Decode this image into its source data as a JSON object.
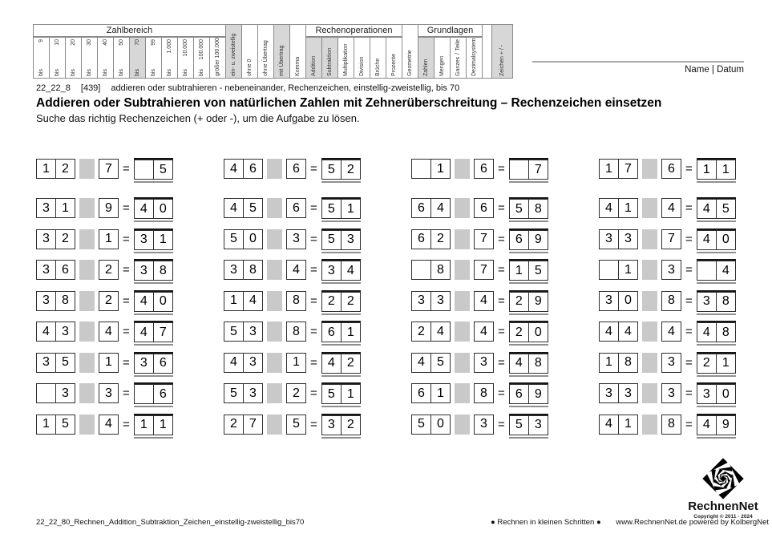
{
  "header": {
    "segments": [
      {
        "type": "group",
        "label": "Zahlbereich",
        "cols": [
          {
            "label": "bis 9"
          },
          {
            "label": "bis 10"
          },
          {
            "label": "bis 20"
          },
          {
            "label": "bis 30"
          },
          {
            "label": "bis 40"
          },
          {
            "label": "bis 50"
          },
          {
            "label": "bis 70",
            "shaded": true
          },
          {
            "label": "bis 99"
          },
          {
            "label": "bis 1.000"
          },
          {
            "label": "bis 10.000"
          },
          {
            "label": "bis 100.000"
          },
          {
            "label": "größer 100.000"
          }
        ]
      },
      {
        "type": "col",
        "label": "ein- u. zweistellig",
        "shaded": true
      },
      {
        "type": "col",
        "label": "ohne 0"
      },
      {
        "type": "col",
        "label": "ohne Übertrag"
      },
      {
        "type": "col",
        "label": "mit Übertrag",
        "shaded": true
      },
      {
        "type": "col",
        "label": "Komma"
      },
      {
        "type": "group",
        "label": "Rechenoperationen",
        "cols": [
          {
            "label": "Addition",
            "shaded": true
          },
          {
            "label": "Subtraktion",
            "shaded": true
          },
          {
            "label": "Multiplikation"
          },
          {
            "label": "Division"
          },
          {
            "label": "Brüche"
          },
          {
            "label": "Prozente"
          }
        ]
      },
      {
        "type": "col",
        "label": "Geometrie"
      },
      {
        "type": "group",
        "label": "Grundlagen",
        "cols": [
          {
            "label": "Zahlen",
            "shaded": true
          },
          {
            "label": "Mengen"
          },
          {
            "label": "Ganzes / Teile"
          },
          {
            "label": "Dezimalsystem"
          }
        ]
      },
      {
        "type": "col",
        "label": "",
        "spacer": true
      },
      {
        "type": "col",
        "label": "Zeichen + / -",
        "shaded": true,
        "wide": true
      }
    ],
    "name_datum_label": "Name | Datum"
  },
  "meta": {
    "code": "22_22_8",
    "ref": "[439]",
    "description": "addieren oder subtrahieren - nebeneinander, Rechenzeichen, einstellig-zweistellig, bis 70"
  },
  "title": "Addieren oder Subtrahieren von natürlichen Zahlen mit Zehnerüberschreitung – Rechenzeichen einsetzen",
  "subtitle": "Suche das richtig Rechenzeichen (+ oder -), um die Aufgabe zu lösen.",
  "problems": {
    "equals": "=",
    "rows": [
      [
        {
          "a": [
            "1",
            "2"
          ],
          "b": "7",
          "r": [
            "",
            "5"
          ]
        },
        {
          "a": [
            "4",
            "6"
          ],
          "b": "6",
          "r": [
            "5",
            "2"
          ]
        },
        {
          "a": [
            "",
            "1"
          ],
          "b": "6",
          "r": [
            "",
            "7"
          ]
        },
        {
          "a": [
            "1",
            "7"
          ],
          "b": "6",
          "r": [
            "1",
            "1"
          ]
        }
      ],
      [
        {
          "a": [
            "3",
            "1"
          ],
          "b": "9",
          "r": [
            "4",
            "0"
          ]
        },
        {
          "a": [
            "4",
            "5"
          ],
          "b": "6",
          "r": [
            "5",
            "1"
          ]
        },
        {
          "a": [
            "6",
            "4"
          ],
          "b": "6",
          "r": [
            "5",
            "8"
          ]
        },
        {
          "a": [
            "4",
            "1"
          ],
          "b": "4",
          "r": [
            "4",
            "5"
          ]
        }
      ],
      [
        {
          "a": [
            "3",
            "2"
          ],
          "b": "1",
          "r": [
            "3",
            "1"
          ]
        },
        {
          "a": [
            "5",
            "0"
          ],
          "b": "3",
          "r": [
            "5",
            "3"
          ]
        },
        {
          "a": [
            "6",
            "2"
          ],
          "b": "7",
          "r": [
            "6",
            "9"
          ]
        },
        {
          "a": [
            "3",
            "3"
          ],
          "b": "7",
          "r": [
            "4",
            "0"
          ]
        }
      ],
      [
        {
          "a": [
            "3",
            "6"
          ],
          "b": "2",
          "r": [
            "3",
            "8"
          ]
        },
        {
          "a": [
            "3",
            "8"
          ],
          "b": "4",
          "r": [
            "3",
            "4"
          ]
        },
        {
          "a": [
            "",
            "8"
          ],
          "b": "7",
          "r": [
            "1",
            "5"
          ]
        },
        {
          "a": [
            "",
            "1"
          ],
          "b": "3",
          "r": [
            "",
            "4"
          ]
        }
      ],
      [
        {
          "a": [
            "3",
            "8"
          ],
          "b": "2",
          "r": [
            "4",
            "0"
          ]
        },
        {
          "a": [
            "1",
            "4"
          ],
          "b": "8",
          "r": [
            "2",
            "2"
          ]
        },
        {
          "a": [
            "3",
            "3"
          ],
          "b": "4",
          "r": [
            "2",
            "9"
          ]
        },
        {
          "a": [
            "3",
            "0"
          ],
          "b": "8",
          "r": [
            "3",
            "8"
          ]
        }
      ],
      [
        {
          "a": [
            "4",
            "3"
          ],
          "b": "4",
          "r": [
            "4",
            "7"
          ]
        },
        {
          "a": [
            "5",
            "3"
          ],
          "b": "8",
          "r": [
            "6",
            "1"
          ]
        },
        {
          "a": [
            "2",
            "4"
          ],
          "b": "4",
          "r": [
            "2",
            "0"
          ]
        },
        {
          "a": [
            "4",
            "4"
          ],
          "b": "4",
          "r": [
            "4",
            "8"
          ]
        }
      ],
      [
        {
          "a": [
            "3",
            "5"
          ],
          "b": "1",
          "r": [
            "3",
            "6"
          ]
        },
        {
          "a": [
            "4",
            "3"
          ],
          "b": "1",
          "r": [
            "4",
            "2"
          ]
        },
        {
          "a": [
            "4",
            "5"
          ],
          "b": "3",
          "r": [
            "4",
            "8"
          ]
        },
        {
          "a": [
            "1",
            "8"
          ],
          "b": "3",
          "r": [
            "2",
            "1"
          ]
        }
      ],
      [
        {
          "a": [
            "",
            "3"
          ],
          "b": "3",
          "r": [
            "",
            "6"
          ]
        },
        {
          "a": [
            "5",
            "3"
          ],
          "b": "2",
          "r": [
            "5",
            "1"
          ]
        },
        {
          "a": [
            "6",
            "1"
          ],
          "b": "8",
          "r": [
            "6",
            "9"
          ]
        },
        {
          "a": [
            "3",
            "3"
          ],
          "b": "3",
          "r": [
            "3",
            "0"
          ]
        }
      ],
      [
        {
          "a": [
            "1",
            "5"
          ],
          "b": "4",
          "r": [
            "1",
            "1"
          ]
        },
        {
          "a": [
            "2",
            "7"
          ],
          "b": "5",
          "r": [
            "3",
            "2"
          ]
        },
        {
          "a": [
            "5",
            "0"
          ],
          "b": "3",
          "r": [
            "5",
            "3"
          ]
        },
        {
          "a": [
            "4",
            "1"
          ],
          "b": "8",
          "r": [
            "4",
            "9"
          ]
        }
      ]
    ]
  },
  "footer": {
    "filename": "22_22_80_Rechnen_Addition_Subtraktion_Zeichen_einstellig-zweistellig_bis70",
    "slogan": "● Rechnen in kleinen Schritten ●",
    "website": "www.RechnenNet.de powered by KolbergNet",
    "logo_text": "RechnenNet",
    "copyright": "Copyright © 2011 - 2024"
  }
}
